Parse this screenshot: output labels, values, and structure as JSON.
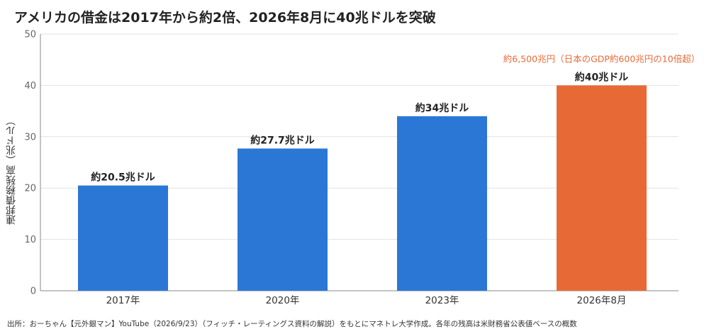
{
  "title": "アメリカの借金は2017年から約2倍、2026年8月に40兆ドルを突破",
  "source": "出所：おーちゃん【元外銀マン】YouTube（2026/9/23）（フィッチ・レーティングス資料の解説）をもとにマネトレ大学作成。各年の残高は米財務省公表値ベースの概数",
  "chart_data": {
    "type": "bar",
    "title": "アメリカの借金は2017年から約2倍、2026年8月に40兆ドルを突破",
    "xlabel": "",
    "ylabel": "連邦債務残高（兆ドル）",
    "ylim": [
      0,
      50
    ],
    "yticks": [
      0,
      10,
      20,
      30,
      40,
      50
    ],
    "grid": true,
    "categories": [
      "2017年",
      "2020年",
      "2023年",
      "2026年8月"
    ],
    "values": [
      20.5,
      27.7,
      34,
      40
    ],
    "data_labels": [
      "約20.5兆ドル",
      "約27.7兆ドル",
      "約34兆ドル",
      "約40兆ドル"
    ],
    "colors": [
      "#2B77D6",
      "#2B77D6",
      "#2B77D6",
      "#E76A36"
    ],
    "annotation": {
      "text": "約6,500兆円（日本のGDP約600兆円の10倍超）",
      "category_index": 3,
      "color": "#E76A36"
    }
  }
}
